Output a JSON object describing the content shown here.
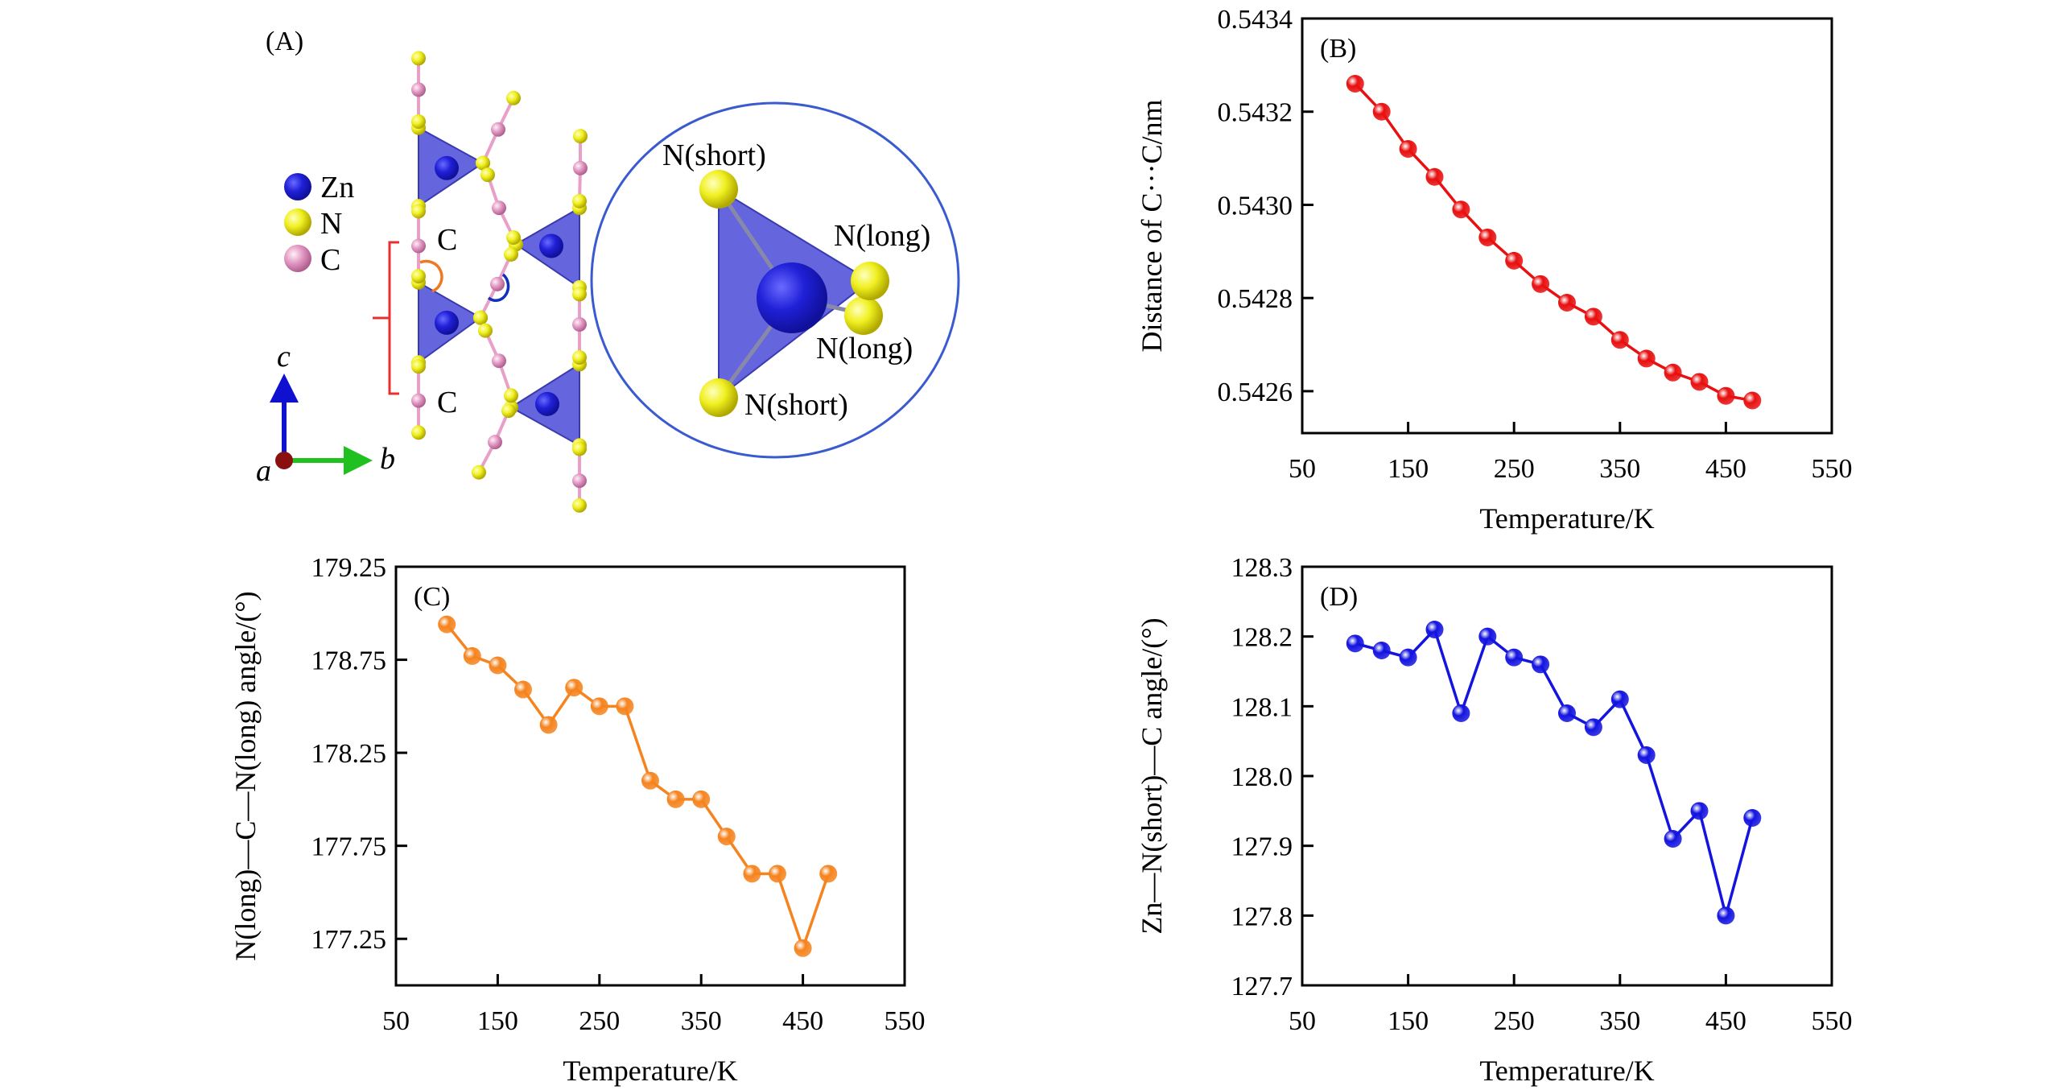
{
  "panel_a": {
    "label": "(A)",
    "legend": [
      {
        "symbol": "Zn",
        "color": "#1a1adb"
      },
      {
        "symbol": "N",
        "color": "#f2f21a"
      },
      {
        "symbol": "C",
        "color": "#e88fc0"
      }
    ],
    "chain_labels": [
      "C",
      "C"
    ],
    "inset_labels": [
      "N(short)",
      "N(long)",
      "N(long)",
      "N(short)"
    ],
    "axes": {
      "c": "c",
      "b": "b",
      "a": "a"
    },
    "colors": {
      "polyhedron": "#4a4ad8",
      "inset_ring": "#3a5ad0",
      "bracket": "#e83030",
      "arc_orange": "#f07820",
      "arc_blue": "#1030c0"
    }
  },
  "chart_data": [
    {
      "type": "line",
      "panel_label": "(B)",
      "xlabel": "Temperature/K",
      "ylabel": "Distance of C···C/nm",
      "xlim": [
        50,
        550
      ],
      "ylim": [
        0.54251,
        0.5434
      ],
      "xticks": [
        "50",
        "150",
        "250",
        "350",
        "450",
        "550"
      ],
      "yticks": [
        "0.5426",
        "0.5428",
        "0.5430",
        "0.5432",
        "0.5434"
      ],
      "color": "#e81010",
      "x": [
        100,
        125,
        150,
        175,
        200,
        225,
        250,
        275,
        300,
        325,
        350,
        375,
        400,
        425,
        450,
        475
      ],
      "y": [
        0.54326,
        0.5432,
        0.54312,
        0.54306,
        0.54299,
        0.54293,
        0.54288,
        0.54283,
        0.54279,
        0.54276,
        0.54271,
        0.54267,
        0.54264,
        0.54262,
        0.54259,
        0.54258
      ],
      "grid": false
    },
    {
      "type": "line",
      "panel_label": "(C)",
      "xlabel": "Temperature/K",
      "ylabel": "N(long)—C—N(long) angle/(°)",
      "xlim": [
        50,
        550
      ],
      "ylim": [
        177.0,
        179.25
      ],
      "xticks": [
        "50",
        "150",
        "250",
        "350",
        "450",
        "550"
      ],
      "yticks": [
        "177.25",
        "177.75",
        "178.25",
        "178.75",
        "179.25"
      ],
      "color": "#f5841f",
      "x": [
        100,
        125,
        150,
        175,
        200,
        225,
        250,
        275,
        300,
        325,
        350,
        375,
        400,
        425,
        450,
        475
      ],
      "y": [
        178.94,
        178.77,
        178.72,
        178.59,
        178.4,
        178.6,
        178.5,
        178.5,
        178.1,
        178.0,
        178.0,
        177.8,
        177.6,
        177.6,
        177.2,
        177.6
      ],
      "grid": false
    },
    {
      "type": "line",
      "panel_label": "(D)",
      "xlabel": "Temperature/K",
      "ylabel": "Zn—N(short)—C  angle/(°)",
      "xlim": [
        50,
        550
      ],
      "ylim": [
        127.7,
        128.3
      ],
      "xticks": [
        "50",
        "150",
        "250",
        "350",
        "450",
        "550"
      ],
      "yticks": [
        "127.7",
        "127.8",
        "127.9",
        "128.0",
        "128.1",
        "128.2",
        "128.3"
      ],
      "color": "#1414e0",
      "x": [
        100,
        125,
        150,
        175,
        200,
        225,
        250,
        275,
        300,
        325,
        350,
        375,
        400,
        425,
        450,
        475
      ],
      "y": [
        128.19,
        128.18,
        128.17,
        128.21,
        128.09,
        128.2,
        128.17,
        128.16,
        128.09,
        128.07,
        128.11,
        128.03,
        127.91,
        127.95,
        127.8,
        127.94
      ],
      "grid": false
    }
  ]
}
